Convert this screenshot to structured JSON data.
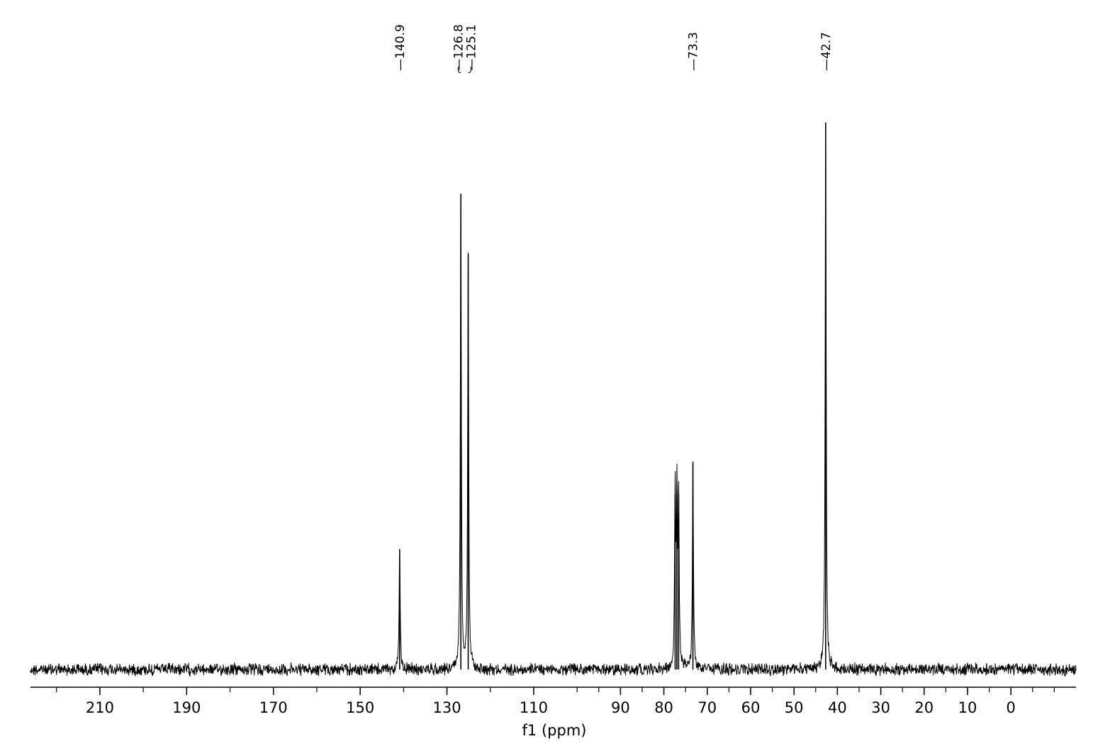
{
  "chart_data": {
    "type": "line",
    "title": "",
    "xlabel": "f1 (ppm)",
    "ylabel": "",
    "xlim": [
      226,
      -15
    ],
    "x_reversed": true,
    "x_ticks": [
      {
        "value": 210,
        "label": "210"
      },
      {
        "value": 190,
        "label": "190"
      },
      {
        "value": 170,
        "label": "170"
      },
      {
        "value": 150,
        "label": "150"
      },
      {
        "value": 130,
        "label": "130"
      },
      {
        "value": 110,
        "label": "110"
      },
      {
        "value": 90,
        "label": "90"
      },
      {
        "value": 80,
        "label": "80"
      },
      {
        "value": 70,
        "label": "70"
      },
      {
        "value": 60,
        "label": "60"
      },
      {
        "value": 50,
        "label": "50"
      },
      {
        "value": 40,
        "label": "40"
      },
      {
        "value": 30,
        "label": "30"
      },
      {
        "value": 20,
        "label": "20"
      },
      {
        "value": 10,
        "label": "10"
      },
      {
        "value": 0,
        "label": "0"
      }
    ],
    "grid": false,
    "baseline_noise": true,
    "peaks": [
      {
        "ppm": 140.9,
        "intensity": 0.22
      },
      {
        "ppm": 126.8,
        "intensity": 0.87
      },
      {
        "ppm": 125.1,
        "intensity": 0.76
      },
      {
        "ppm": 77.4,
        "intensity": 0.32
      },
      {
        "ppm": 77.0,
        "intensity": 0.31
      },
      {
        "ppm": 76.6,
        "intensity": 0.32
      },
      {
        "ppm": 73.3,
        "intensity": 0.38
      },
      {
        "ppm": 42.7,
        "intensity": 1.0
      }
    ],
    "peak_labels": [
      {
        "ppm": 140.9,
        "label": "140.9",
        "group": "a"
      },
      {
        "ppm": 126.8,
        "label": "126.8",
        "group": "b"
      },
      {
        "ppm": 125.1,
        "label": "125.1",
        "group": "b"
      },
      {
        "ppm": 73.3,
        "label": "73.3",
        "group": "c"
      },
      {
        "ppm": 42.7,
        "label": "42.7",
        "group": "d"
      }
    ]
  }
}
